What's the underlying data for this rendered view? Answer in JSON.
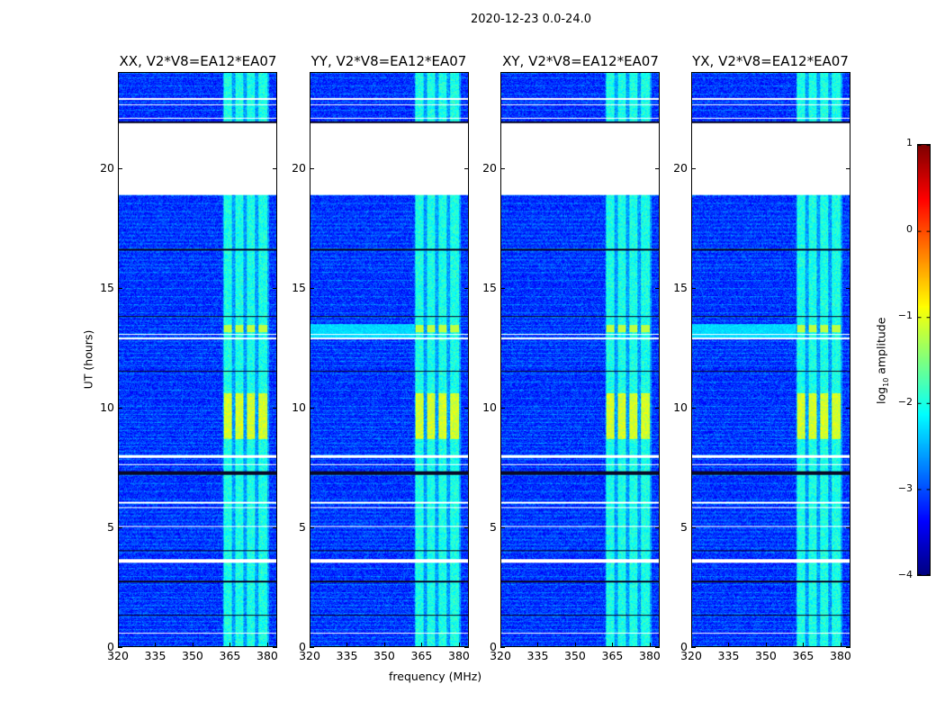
{
  "figure_title": "2020-12-23 0.0-24.0",
  "chart_data": [
    {
      "type": "heatmap",
      "panels": [
        {
          "title": "XX, V2*V8=EA12*EA07",
          "pol": "XX"
        },
        {
          "title": "YY, V2*V8=EA12*EA07",
          "pol": "YY"
        },
        {
          "title": "XY, V2*V8=EA12*EA07",
          "pol": "XY"
        },
        {
          "title": "YX, V2*V8=EA12*EA07",
          "pol": "YX"
        }
      ],
      "xlabel": "frequency (MHz)",
      "ylabel": "UT (hours)",
      "xlim": [
        320,
        384
      ],
      "ylim": [
        0,
        24
      ],
      "xticks": [
        "320",
        "335",
        "350",
        "365",
        "380"
      ],
      "xtick_values": [
        320,
        335,
        350,
        365,
        380
      ],
      "yticks": [
        "0",
        "5",
        "10",
        "15",
        "20"
      ],
      "ytick_values": [
        0,
        5,
        10,
        15,
        20
      ],
      "flagged_hours": [
        [
          18.9,
          21.9
        ],
        [
          0.55,
          0.6
        ],
        [
          3.5,
          3.65
        ],
        [
          5.0,
          5.05
        ],
        [
          5.8,
          5.85
        ],
        [
          6.0,
          6.05
        ],
        [
          7.6,
          7.65
        ],
        [
          7.9,
          8.0
        ],
        [
          12.85,
          12.95
        ],
        [
          13.05,
          13.1
        ],
        [
          22.1,
          22.15
        ],
        [
          22.65,
          22.7
        ],
        [
          22.9,
          22.95
        ]
      ],
      "dark_rows_hours": [
        [
          21.9,
          22.0
        ],
        [
          7.2,
          7.35
        ],
        [
          11.5,
          11.55
        ],
        [
          13.8,
          13.85
        ],
        [
          16.6,
          16.65
        ],
        [
          2.7,
          2.75
        ],
        [
          1.3,
          1.35
        ],
        [
          4.0,
          4.05
        ]
      ],
      "rfi_band_mhz": [
        362,
        381
      ],
      "rfi_strong_hours": [
        8.7,
        10.6
      ]
    },
    {
      "type": "colorbar",
      "label_main": "log",
      "label_sub": "10",
      "label_rest": " amplitude",
      "range": [
        -4,
        1
      ],
      "ticks": [
        "1",
        "0",
        "−1",
        "−2",
        "−3",
        "−4"
      ],
      "tick_values": [
        1,
        0,
        -1,
        -2,
        -3,
        -4
      ],
      "colormap": "jet"
    }
  ]
}
